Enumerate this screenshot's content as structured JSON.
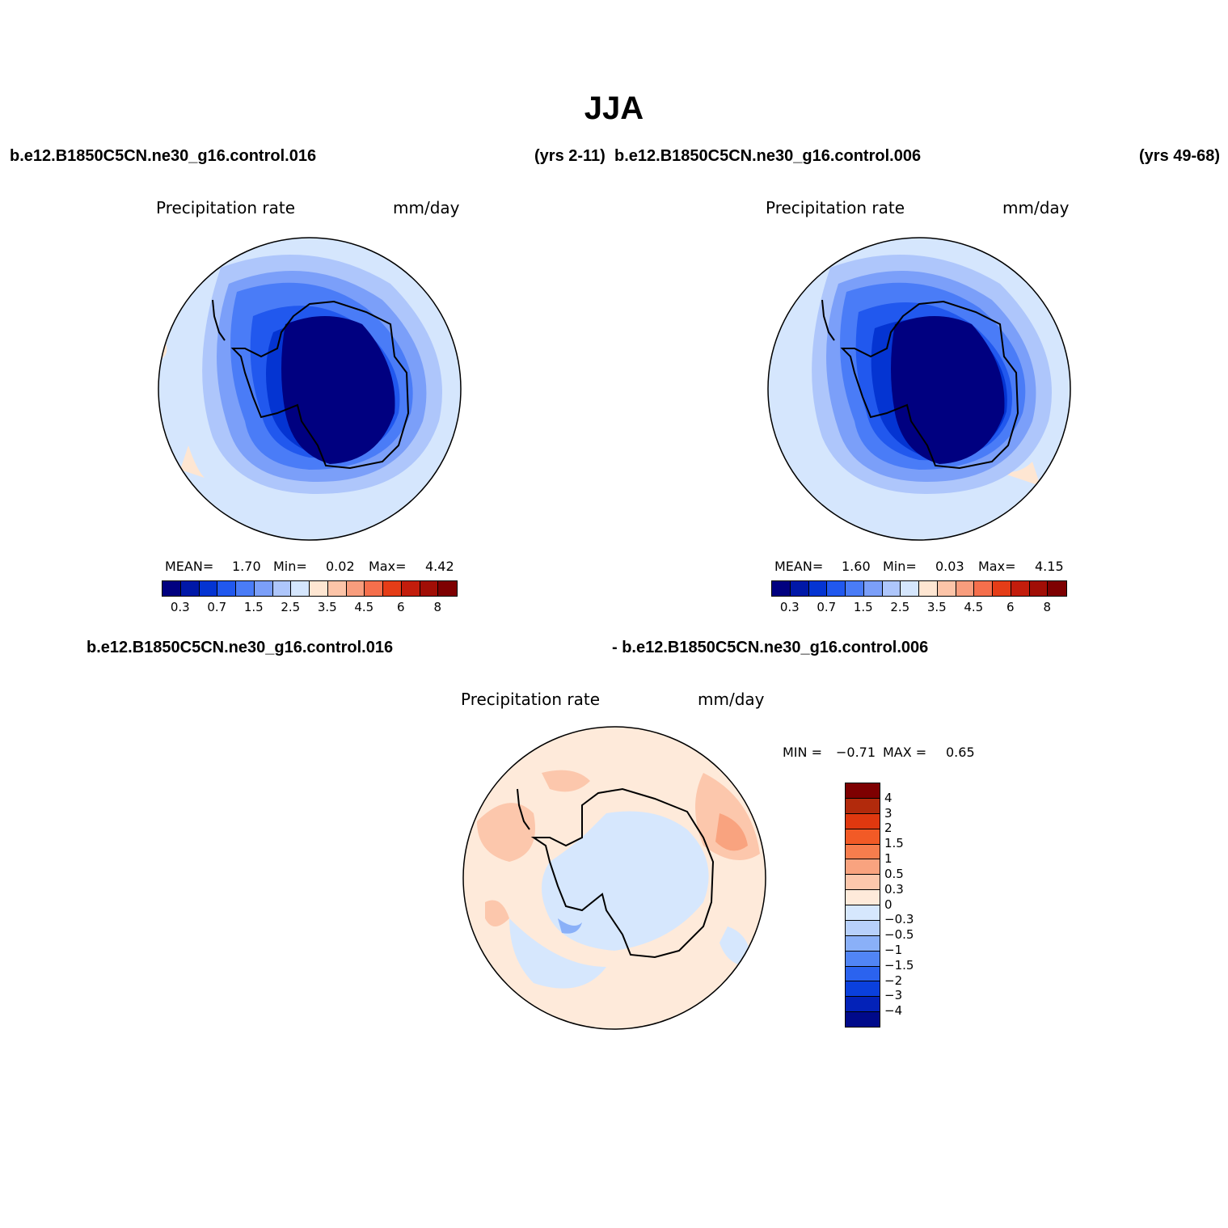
{
  "title": "JJA",
  "header": {
    "case_a": "b.e12.B1850C5CN.ne30_g16.control.016",
    "years_a": "(yrs 2-11)",
    "case_b": "b.e12.B1850C5CN.ne30_g16.control.006",
    "years_b": "(yrs 49-68)"
  },
  "diff_header": {
    "case_a": "b.e12.B1850C5CN.ne30_g16.control.016",
    "case_b": "- b.e12.B1850C5CN.ne30_g16.control.006"
  },
  "panels": [
    {
      "variable": "Precipitation rate",
      "units": "mm/day",
      "mean_label": "MEAN=",
      "mean": "1.70",
      "min_label": "Min=",
      "min": "0.02",
      "max_label": "Max=",
      "max": "4.42"
    },
    {
      "variable": "Precipitation rate",
      "units": "mm/day",
      "mean_label": "MEAN=",
      "mean": "1.60",
      "min_label": "Min=",
      "min": "0.03",
      "max_label": "Max=",
      "max": "4.15"
    }
  ],
  "diff_panel": {
    "variable": "Precipitation rate",
    "units": "mm/day",
    "min_label": "MIN =",
    "min": "−0.71",
    "max_label": "MAX =",
    "max": "0.65"
  },
  "colorbar_main": {
    "colors": [
      "#000080",
      "#0018a8",
      "#0434d2",
      "#2158ee",
      "#4a7cf7",
      "#7b9ff9",
      "#aec6fb",
      "#d5e6fd",
      "#fee6d2",
      "#fcc4a8",
      "#f89d7d",
      "#f56f4c",
      "#e53d17",
      "#c31d0c",
      "#a10e06",
      "#7e0001"
    ],
    "tick_labels": [
      "0.3",
      "0.7",
      "1.5",
      "2.5",
      "3.5",
      "4.5",
      "6",
      "8"
    ]
  },
  "colorbar_diff": {
    "colors": [
      "#7e0001",
      "#b22a0c",
      "#e0380f",
      "#f25a26",
      "#f77d4d",
      "#f9a37f",
      "#fcc7ac",
      "#feeada",
      "#d6e7fd",
      "#b7d0fb",
      "#8ab0f8",
      "#5185f5",
      "#2b63ef",
      "#0a40dd",
      "#0322b8",
      "#000a8a"
    ],
    "tick_labels": [
      "4",
      "3",
      "2",
      "1.5",
      "1",
      "0.5",
      "0.3",
      "0",
      "−0.3",
      "−0.5",
      "−1",
      "−1.5",
      "−2",
      "−3",
      "−4"
    ]
  }
}
